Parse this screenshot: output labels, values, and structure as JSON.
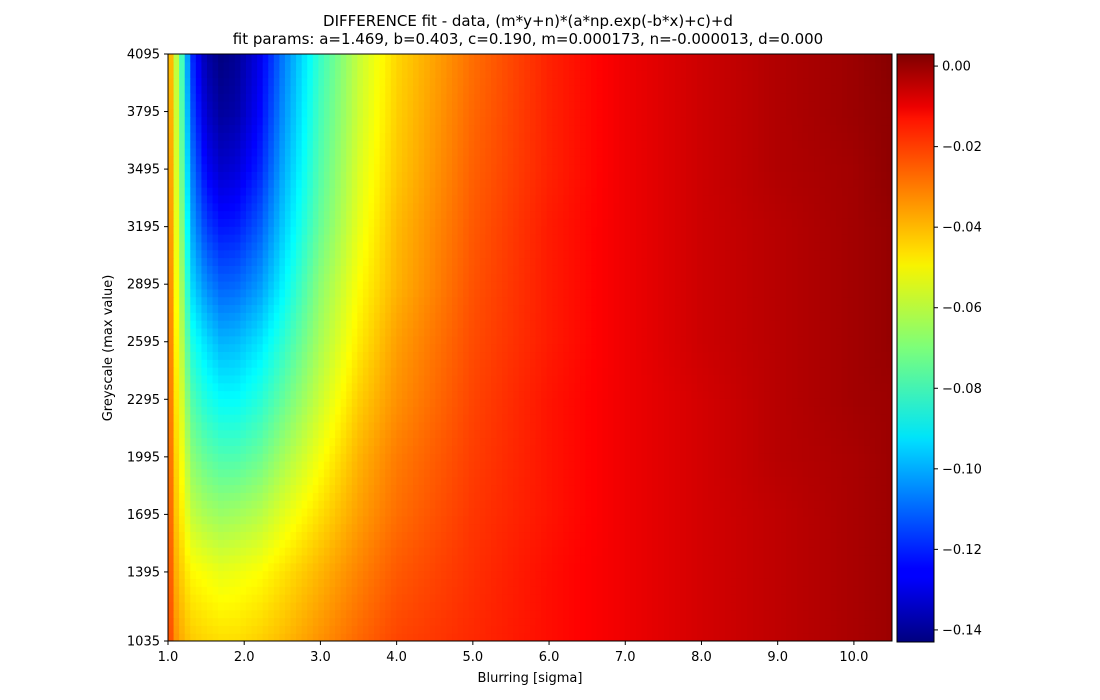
{
  "chart_data": {
    "type": "heatmap",
    "title": "DIFFERENCE fit - data, (m*y+n)*(a*np.exp(-b*x)+c)+d",
    "subtitle": "fit params: a=1.469, b=0.403, c=0.190, m=0.000173, n=-0.000013, d=0.000",
    "xlabel": "Blurring [sigma]",
    "ylabel": "Greyscale (max value)",
    "xlim": [
      1.0,
      10.5
    ],
    "ylim": [
      1035,
      4095
    ],
    "xticks": [
      "1.0",
      "2.0",
      "3.0",
      "4.0",
      "5.0",
      "6.0",
      "7.0",
      "8.0",
      "9.0",
      "10.0"
    ],
    "yticks": [
      "1035",
      "1395",
      "1695",
      "1995",
      "2295",
      "2595",
      "2895",
      "3195",
      "3495",
      "3795",
      "4095"
    ],
    "colormap": "jet",
    "colorbar": {
      "vmin": -0.143,
      "vmax": 0.003,
      "ticks": [
        "0.00",
        "−0.02",
        "−0.04",
        "−0.06",
        "−0.08",
        "−0.10",
        "−0.12",
        "−0.14"
      ]
    },
    "samples": {
      "x": [
        1.0,
        1.1,
        1.2,
        1.3,
        1.5,
        1.7,
        1.9,
        2.2,
        2.5,
        3.0,
        3.5,
        4.0,
        5.0,
        6.0,
        7.0,
        8.0,
        9.0,
        10.0,
        10.5
      ],
      "y": [
        1035,
        1395,
        1695,
        1995,
        2295,
        2595,
        2895,
        3195,
        3495,
        3795,
        4095
      ],
      "z": [
        [
          -0.022,
          -0.036,
          -0.041,
          -0.044,
          -0.046,
          -0.047,
          -0.047,
          -0.045,
          -0.042,
          -0.036,
          -0.03,
          -0.025,
          -0.021,
          -0.017,
          -0.013,
          -0.009,
          -0.006,
          -0.003,
          -0.001
        ],
        [
          -0.023,
          -0.04,
          -0.046,
          -0.051,
          -0.053,
          -0.055,
          -0.054,
          -0.052,
          -0.048,
          -0.041,
          -0.034,
          -0.028,
          -0.022,
          -0.017,
          -0.013,
          -0.009,
          -0.006,
          -0.003,
          -0.001
        ],
        [
          -0.024,
          -0.043,
          -0.051,
          -0.06,
          -0.064,
          -0.066,
          -0.065,
          -0.062,
          -0.056,
          -0.047,
          -0.038,
          -0.031,
          -0.023,
          -0.018,
          -0.013,
          -0.009,
          -0.006,
          -0.003,
          -0.001
        ],
        [
          -0.025,
          -0.045,
          -0.055,
          -0.068,
          -0.074,
          -0.077,
          -0.077,
          -0.073,
          -0.065,
          -0.053,
          -0.041,
          -0.033,
          -0.024,
          -0.018,
          -0.013,
          -0.009,
          -0.005,
          -0.003,
          -0.001
        ],
        [
          -0.026,
          -0.047,
          -0.06,
          -0.076,
          -0.084,
          -0.088,
          -0.088,
          -0.083,
          -0.074,
          -0.059,
          -0.045,
          -0.036,
          -0.025,
          -0.018,
          -0.013,
          -0.009,
          -0.005,
          -0.002,
          -0.001
        ],
        [
          -0.027,
          -0.049,
          -0.065,
          -0.084,
          -0.093,
          -0.099,
          -0.098,
          -0.092,
          -0.082,
          -0.064,
          -0.049,
          -0.038,
          -0.026,
          -0.019,
          -0.013,
          -0.008,
          -0.005,
          -0.002,
          0.0
        ],
        [
          -0.028,
          -0.051,
          -0.069,
          -0.093,
          -0.105,
          -0.111,
          -0.11,
          -0.103,
          -0.09,
          -0.068,
          -0.052,
          -0.041,
          -0.027,
          -0.019,
          -0.013,
          -0.008,
          -0.005,
          -0.002,
          0.0
        ],
        [
          -0.029,
          -0.053,
          -0.073,
          -0.1,
          -0.116,
          -0.122,
          -0.121,
          -0.112,
          -0.096,
          -0.073,
          -0.055,
          -0.042,
          -0.028,
          -0.019,
          -0.013,
          -0.008,
          -0.005,
          -0.002,
          0.0
        ],
        [
          -0.03,
          -0.055,
          -0.077,
          -0.106,
          -0.125,
          -0.132,
          -0.13,
          -0.12,
          -0.101,
          -0.076,
          -0.057,
          -0.044,
          -0.029,
          -0.02,
          -0.013,
          -0.008,
          -0.004,
          -0.002,
          0.001
        ],
        [
          -0.031,
          -0.057,
          -0.08,
          -0.112,
          -0.132,
          -0.139,
          -0.137,
          -0.125,
          -0.105,
          -0.078,
          -0.059,
          -0.045,
          -0.03,
          -0.02,
          -0.013,
          -0.008,
          -0.004,
          -0.001,
          0.001
        ],
        [
          -0.032,
          -0.059,
          -0.083,
          -0.117,
          -0.137,
          -0.143,
          -0.14,
          -0.128,
          -0.108,
          -0.08,
          -0.06,
          -0.046,
          -0.031,
          -0.02,
          -0.013,
          -0.008,
          -0.004,
          -0.001,
          0.002
        ]
      ]
    }
  }
}
